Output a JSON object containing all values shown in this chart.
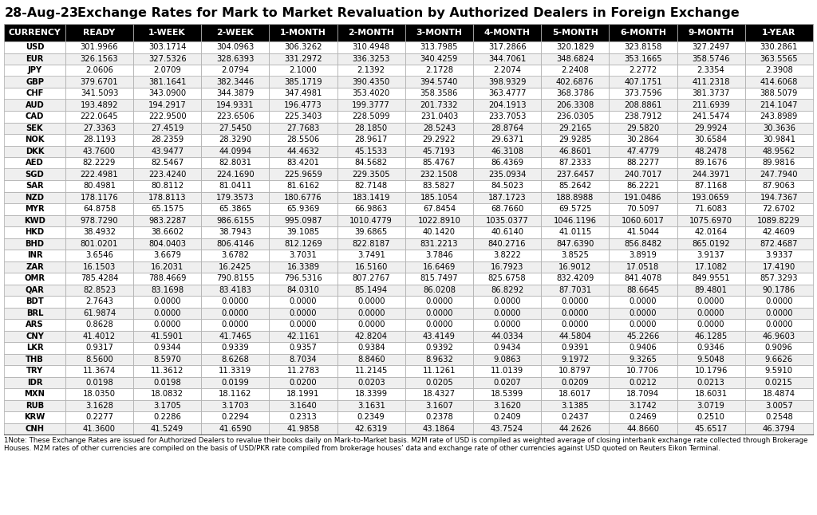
{
  "title": "Exchange Rates for Mark to Market Revaluation by Authorized Dealers in Foreign Exchange",
  "date": "28-Aug-23",
  "columns": [
    "CURRENCY",
    "READY",
    "1-WEEK",
    "2-WEEK",
    "1-MONTH",
    "2-MONTH",
    "3-MONTH",
    "4-MONTH",
    "5-MONTH",
    "6-MONTH",
    "9-MONTH",
    "1-YEAR"
  ],
  "rows": [
    [
      "USD",
      "301.9966",
      "303.1714",
      "304.0963",
      "306.3262",
      "310.4948",
      "313.7985",
      "317.2866",
      "320.1829",
      "323.8158",
      "327.2497",
      "330.2861"
    ],
    [
      "EUR",
      "326.1563",
      "327.5326",
      "328.6393",
      "331.2972",
      "336.3253",
      "340.4259",
      "344.7061",
      "348.6824",
      "353.1665",
      "358.5746",
      "363.5565"
    ],
    [
      "JPY",
      "2.0606",
      "2.0709",
      "2.0794",
      "2.1000",
      "2.1392",
      "2.1728",
      "2.2074",
      "2.2408",
      "2.2772",
      "2.3354",
      "2.3908"
    ],
    [
      "GBP",
      "379.6701",
      "381.1641",
      "382.3446",
      "385.1719",
      "390.4350",
      "394.5740",
      "398.9329",
      "402.6876",
      "407.1751",
      "411.2318",
      "414.6068"
    ],
    [
      "CHF",
      "341.5093",
      "343.0900",
      "344.3879",
      "347.4981",
      "353.4020",
      "358.3586",
      "363.4777",
      "368.3786",
      "373.7596",
      "381.3737",
      "388.5079"
    ],
    [
      "AUD",
      "193.4892",
      "194.2917",
      "194.9331",
      "196.4773",
      "199.3777",
      "201.7332",
      "204.1913",
      "206.3308",
      "208.8861",
      "211.6939",
      "214.1047"
    ],
    [
      "CAD",
      "222.0645",
      "222.9500",
      "223.6506",
      "225.3403",
      "228.5099",
      "231.0403",
      "233.7053",
      "236.0305",
      "238.7912",
      "241.5474",
      "243.8989"
    ],
    [
      "SEK",
      "27.3363",
      "27.4519",
      "27.5450",
      "27.7683",
      "28.1850",
      "28.5243",
      "28.8764",
      "29.2165",
      "29.5820",
      "29.9924",
      "30.3636"
    ],
    [
      "NOK",
      "28.1193",
      "28.2359",
      "28.3290",
      "28.5506",
      "28.9617",
      "29.2922",
      "29.6371",
      "29.9285",
      "30.2864",
      "30.6584",
      "30.9841"
    ],
    [
      "DKK",
      "43.7600",
      "43.9477",
      "44.0994",
      "44.4632",
      "45.1533",
      "45.7193",
      "46.3108",
      "46.8601",
      "47.4779",
      "48.2478",
      "48.9562"
    ],
    [
      "AED",
      "82.2229",
      "82.5467",
      "82.8031",
      "83.4201",
      "84.5682",
      "85.4767",
      "86.4369",
      "87.2333",
      "88.2277",
      "89.1676",
      "89.9816"
    ],
    [
      "SGD",
      "222.4981",
      "223.4240",
      "224.1690",
      "225.9659",
      "229.3505",
      "232.1508",
      "235.0934",
      "237.6457",
      "240.7017",
      "244.3971",
      "247.7940"
    ],
    [
      "SAR",
      "80.4981",
      "80.8112",
      "81.0411",
      "81.6162",
      "82.7148",
      "83.5827",
      "84.5023",
      "85.2642",
      "86.2221",
      "87.1168",
      "87.9063"
    ],
    [
      "NZD",
      "178.1176",
      "178.8113",
      "179.3573",
      "180.6776",
      "183.1419",
      "185.1054",
      "187.1723",
      "188.8988",
      "191.0486",
      "193.0659",
      "194.7367"
    ],
    [
      "MYR",
      "64.8758",
      "65.1575",
      "65.3865",
      "65.9369",
      "66.9863",
      "67.8454",
      "68.7660",
      "69.5725",
      "70.5097",
      "71.6083",
      "72.6702"
    ],
    [
      "KWD",
      "978.7290",
      "983.2287",
      "986.6155",
      "995.0987",
      "1010.4779",
      "1022.8910",
      "1035.0377",
      "1046.1196",
      "1060.6017",
      "1075.6970",
      "1089.8229"
    ],
    [
      "HKD",
      "38.4932",
      "38.6602",
      "38.7943",
      "39.1085",
      "39.6865",
      "40.1420",
      "40.6140",
      "41.0115",
      "41.5044",
      "42.0164",
      "42.4609"
    ],
    [
      "BHD",
      "801.0201",
      "804.0403",
      "806.4146",
      "812.1269",
      "822.8187",
      "831.2213",
      "840.2716",
      "847.6390",
      "856.8482",
      "865.0192",
      "872.4687"
    ],
    [
      "INR",
      "3.6546",
      "3.6679",
      "3.6782",
      "3.7031",
      "3.7491",
      "3.7846",
      "3.8222",
      "3.8525",
      "3.8919",
      "3.9137",
      "3.9337"
    ],
    [
      "ZAR",
      "16.1503",
      "16.2031",
      "16.2425",
      "16.3389",
      "16.5160",
      "16.6469",
      "16.7923",
      "16.9012",
      "17.0518",
      "17.1082",
      "17.4190"
    ],
    [
      "OMR",
      "785.4284",
      "788.4669",
      "790.8155",
      "796.5316",
      "807.2767",
      "815.7497",
      "825.6758",
      "832.4209",
      "841.4078",
      "849.9551",
      "857.3293"
    ],
    [
      "QAR",
      "82.8523",
      "83.1698",
      "83.4183",
      "84.0310",
      "85.1494",
      "86.0208",
      "86.8292",
      "87.7031",
      "88.6645",
      "89.4801",
      "90.1786"
    ],
    [
      "BDT",
      "2.7643",
      "0.0000",
      "0.0000",
      "0.0000",
      "0.0000",
      "0.0000",
      "0.0000",
      "0.0000",
      "0.0000",
      "0.0000",
      "0.0000"
    ],
    [
      "BRL",
      "61.9874",
      "0.0000",
      "0.0000",
      "0.0000",
      "0.0000",
      "0.0000",
      "0.0000",
      "0.0000",
      "0.0000",
      "0.0000",
      "0.0000"
    ],
    [
      "ARS",
      "0.8628",
      "0.0000",
      "0.0000",
      "0.0000",
      "0.0000",
      "0.0000",
      "0.0000",
      "0.0000",
      "0.0000",
      "0.0000",
      "0.0000"
    ],
    [
      "CNY",
      "41.4012",
      "41.5901",
      "41.7465",
      "42.1161",
      "42.8204",
      "43.4149",
      "44.0334",
      "44.5804",
      "45.2266",
      "46.1285",
      "46.9603"
    ],
    [
      "LKR",
      "0.9317",
      "0.9344",
      "0.9339",
      "0.9357",
      "0.9384",
      "0.9392",
      "0.9434",
      "0.9391",
      "0.9406",
      "0.9346",
      "0.9096"
    ],
    [
      "THB",
      "8.5600",
      "8.5970",
      "8.6268",
      "8.7034",
      "8.8460",
      "8.9632",
      "9.0863",
      "9.1972",
      "9.3265",
      "9.5048",
      "9.6626"
    ],
    [
      "TRY",
      "11.3674",
      "11.3612",
      "11.3319",
      "11.2783",
      "11.2145",
      "11.1261",
      "11.0139",
      "10.8797",
      "10.7706",
      "10.1796",
      "9.5910"
    ],
    [
      "IDR",
      "0.0198",
      "0.0198",
      "0.0199",
      "0.0200",
      "0.0203",
      "0.0205",
      "0.0207",
      "0.0209",
      "0.0212",
      "0.0213",
      "0.0215"
    ],
    [
      "MXN",
      "18.0350",
      "18.0832",
      "18.1162",
      "18.1991",
      "18.3399",
      "18.4327",
      "18.5399",
      "18.6017",
      "18.7094",
      "18.6031",
      "18.4874"
    ],
    [
      "RUB",
      "3.1628",
      "3.1705",
      "3.1703",
      "3.1640",
      "3.1631",
      "3.1607",
      "3.1620",
      "3.1385",
      "3.1742",
      "3.0719",
      "3.0057"
    ],
    [
      "KRW",
      "0.2277",
      "0.2286",
      "0.2294",
      "0.2313",
      "0.2349",
      "0.2378",
      "0.2409",
      "0.2437",
      "0.2469",
      "0.2510",
      "0.2548"
    ],
    [
      "CNH",
      "41.3600",
      "41.5249",
      "41.6590",
      "41.9858",
      "42.6319",
      "43.1864",
      "43.7524",
      "44.2626",
      "44.8660",
      "45.6517",
      "46.3794"
    ]
  ],
  "note_superscript": "1",
  "note_main": "Note: These Exchange Rates are issued for Authorized Dealers to revalue their books daily on Mark-to-Market basis. M2M rate of USD is compiled as weighted average of closing interbank exchange rate collected through Brokerage Houses. M2M rates of other currencies are compiled on the basis of USD/PKR rate compiled from brokerage houses’ data and exchange rate of other currencies against USD quoted on Reuters Eikon Terminal.",
  "header_bg": "#000000",
  "header_fg": "#ffffff",
  "row_bg_even": "#ffffff",
  "row_bg_odd": "#efefef",
  "border_color": "#aaaaaa",
  "title_color": "#000000",
  "date_color": "#000000",
  "title_fontsize": 11.5,
  "date_fontsize": 11.5,
  "header_fontsize": 7.8,
  "data_fontsize": 7.2,
  "note_fontsize": 6.2
}
